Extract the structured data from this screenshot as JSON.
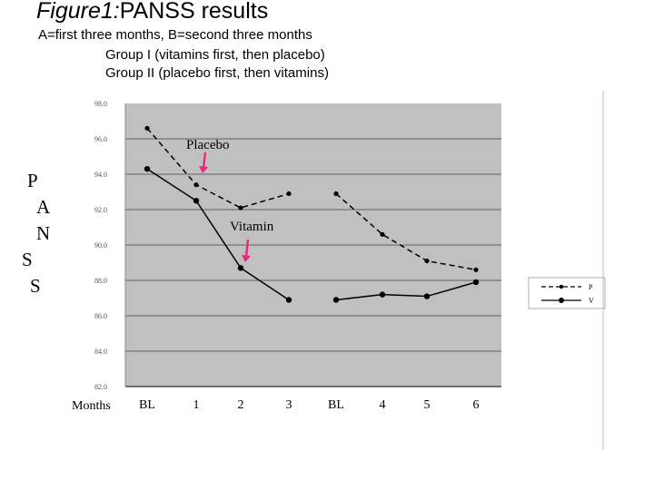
{
  "header": {
    "title_italic": "Figure1:",
    "title_rest": "PANSS results",
    "line1": "A=first three months, B=second three months",
    "line2": "Group I (vitamins first, then placebo)",
    "line3": "Group II (placebo first, then vitamins)"
  },
  "ylabel_letters": [
    "P",
    "A",
    "N",
    "S",
    "S"
  ],
  "chart_data": {
    "type": "line",
    "xlabel": "Months",
    "categories": [
      "BL",
      "1",
      "2",
      "3",
      "BL",
      "4",
      "5",
      "6"
    ],
    "ylim": [
      82.0,
      98.0
    ],
    "yticks": [
      "98.0",
      "96.0",
      "94.0",
      "92.0",
      "90.0",
      "88.0",
      "86.0",
      "84.0",
      "82.0"
    ],
    "grid": true,
    "legend_position": "right",
    "series": [
      {
        "name": "P",
        "style": "dashed",
        "color": "#000000",
        "segments": [
          [
            96.6,
            93.4,
            92.1,
            92.9
          ],
          [
            92.9,
            90.6,
            89.1,
            88.6
          ]
        ]
      },
      {
        "name": "V",
        "style": "solid",
        "color": "#000000",
        "segments": [
          [
            94.3,
            92.5,
            88.7,
            86.9
          ],
          [
            86.9,
            87.2,
            87.1,
            87.9
          ]
        ]
      }
    ],
    "annotations": [
      {
        "text": "Placebo",
        "arrow_to": {
          "category_index": 1,
          "value": 93.4
        },
        "arrow_color": "#e8287a"
      },
      {
        "text": "Vitamin",
        "arrow_to": {
          "category_index": 2,
          "value": 88.7
        },
        "arrow_color": "#e8287a"
      }
    ],
    "plot_bg": "#c0c0c0"
  }
}
